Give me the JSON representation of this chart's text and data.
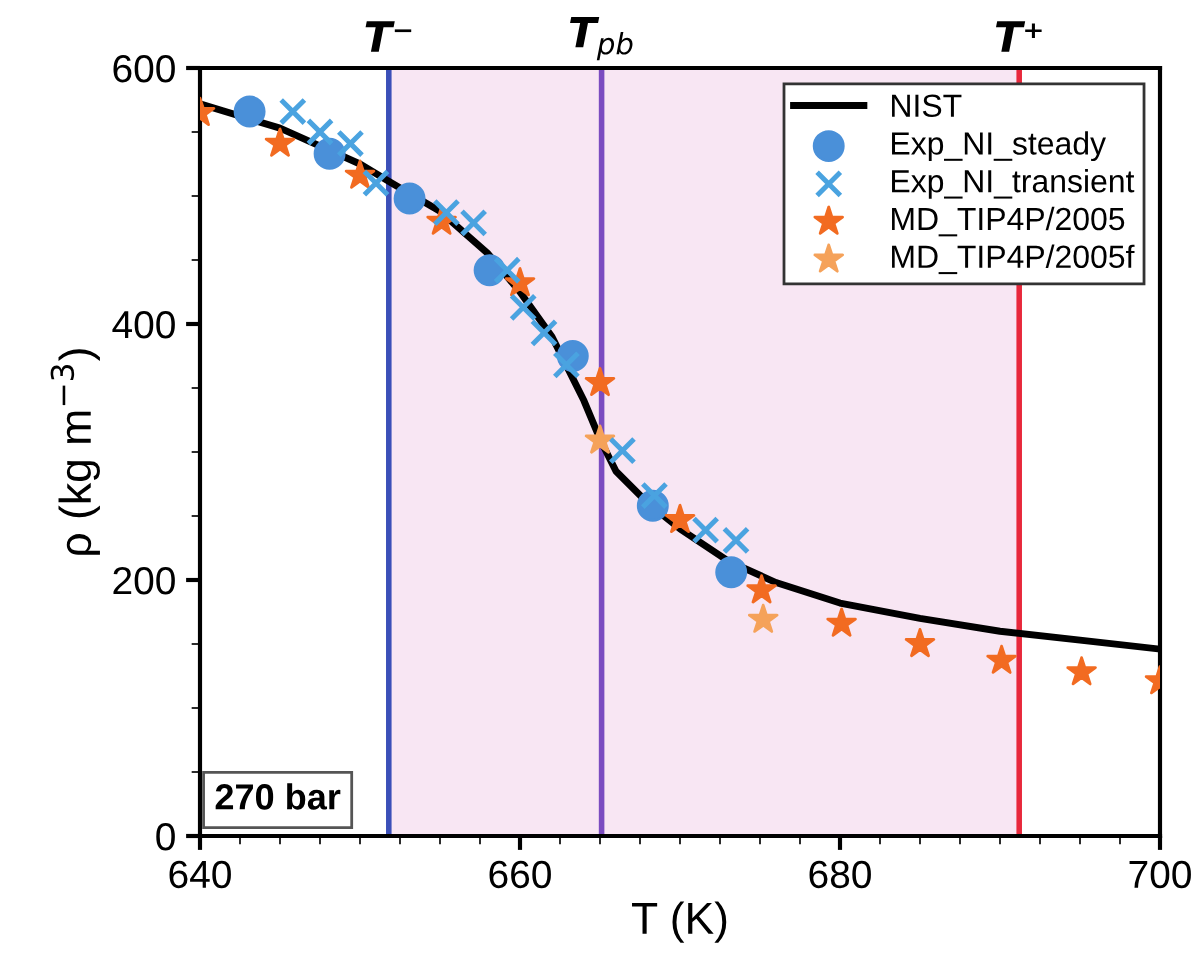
{
  "chart_data": {
    "type": "scatter",
    "xlabel": "T (K)",
    "ylabel": "ρ (kg m$^{−3}$)",
    "xlim": [
      640,
      700
    ],
    "xticks": [
      640,
      660,
      680,
      700
    ],
    "ylim": [
      0,
      600
    ],
    "yticks": [
      0,
      200,
      400,
      600
    ],
    "grid": false,
    "legend": "top right",
    "series": [
      {
        "name": "NIST",
        "type": "line",
        "color": "#000000",
        "marker": "none",
        "line_style": "solid",
        "x": [
          640,
          645,
          650,
          652,
          655,
          658,
          660,
          662,
          664,
          665,
          666,
          668,
          670,
          673,
          676,
          680,
          685,
          690,
          695,
          700
        ],
        "values": [
          572,
          553,
          525,
          510,
          488,
          455,
          425,
          390,
          340,
          310,
          285,
          260,
          240,
          215,
          198,
          182,
          170,
          160,
          153,
          146
        ]
      },
      {
        "name": "Exp_NI_steady",
        "color": "#4a90d9",
        "marker": "circle",
        "x": [
          643.1,
          648.1,
          653.1,
          658.1,
          663.3,
          668.3,
          673.2
        ],
        "values": [
          566,
          533,
          498,
          442,
          375,
          258,
          206
        ]
      },
      {
        "name": "Exp_NI_transient",
        "color": "#4aa3e0",
        "marker": "cross",
        "x": [
          645.8,
          647.5,
          649.4,
          651,
          655.4,
          657.1,
          659.2,
          660.2,
          661.5,
          662.9,
          666.4,
          668.4,
          671.6,
          673.5
        ],
        "values": [
          566,
          550,
          541,
          510,
          487,
          479,
          442,
          413,
          393,
          368,
          301,
          266,
          239,
          231
        ]
      },
      {
        "name": "MD_TIP4P/2005",
        "color": "#f26b21",
        "marker": "star",
        "x": [
          640,
          645,
          650,
          655.1,
          660,
          665,
          670,
          675.1,
          680.1,
          685,
          690.1,
          695.1,
          700
        ],
        "values": [
          565,
          541,
          516,
          480,
          432,
          354,
          247,
          192,
          166,
          150,
          137,
          128,
          121
        ]
      },
      {
        "name": "MD_TIP4P/2005f",
        "color": "#f5a25a",
        "marker": "star",
        "x": [
          665,
          675.2
        ],
        "values": [
          309,
          169
        ]
      }
    ],
    "ref_lines": [
      {
        "axis": "x",
        "value": 651.8,
        "label": "T⁻",
        "color": "#3b4fb8"
      },
      {
        "axis": "x",
        "value": 665.1,
        "label": "T$_{pb}$",
        "color": "#7b4cc0"
      },
      {
        "axis": "x",
        "value": 691.2,
        "label": "T⁺",
        "color": "#e8283c"
      }
    ],
    "bands": [
      {
        "axis": "x",
        "from": 651.8,
        "to": 691.2,
        "color": "#f8e6f3"
      }
    ],
    "annotations": [
      "270 bar"
    ]
  }
}
